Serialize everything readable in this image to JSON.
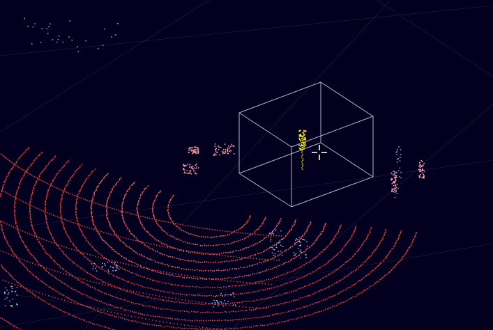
{
  "app": {
    "view": "lidar-point-cloud-3d-viewport"
  },
  "colors": {
    "background": "#02001e",
    "ground_points": "#e83a3a",
    "ground_points_bright": "#ff5a5a",
    "object_points": "#f29aa8",
    "sparse_points": "#b9b6e8",
    "selected_points": "#f2e31b",
    "grid_lines": "#3a3a5e",
    "bounding_box": "#b4b4c4",
    "cursor": "#ffffff"
  },
  "cursor": {
    "icon": "move-crosshair-icon"
  },
  "bounding_box": {
    "state": "selected"
  }
}
